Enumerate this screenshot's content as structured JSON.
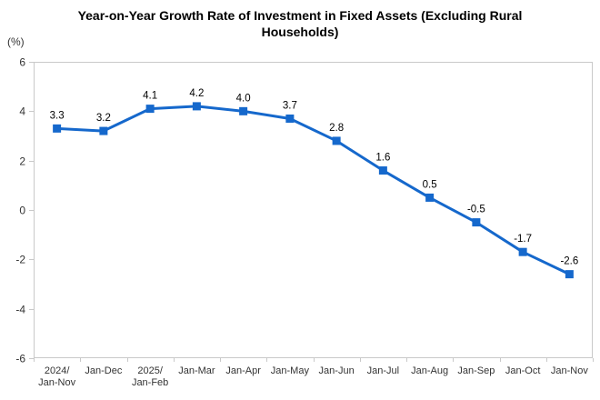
{
  "title": "Year-on-Year Growth Rate of Investment in Fixed Assets (Excluding Rural Households)",
  "y_axis_unit": "(%)",
  "colors": {
    "line": "#1568CC",
    "marker": "#1568CC",
    "axis": "#C9C9C9",
    "axis_text": "#333333",
    "data_label_text": "#000000",
    "title_text": "#000000",
    "background": "#FFFFFF"
  },
  "chart_data": {
    "type": "line",
    "title": "Year-on-Year Growth Rate of Investment in Fixed Assets (Excluding Rural Households)",
    "xlabel": "",
    "ylabel": "(%)",
    "categories": [
      [
        "2024/",
        "Jan-Nov"
      ],
      "Jan-Dec",
      [
        "2025/",
        "Jan-Feb"
      ],
      "Jan-Mar",
      "Jan-Apr",
      "Jan-May",
      "Jan-Jun",
      "Jan-Jul",
      "Jan-Aug",
      "Jan-Sep",
      "Jan-Oct",
      "Jan-Nov"
    ],
    "values": [
      3.3,
      3.2,
      4.1,
      4.2,
      4.0,
      3.7,
      2.8,
      1.6,
      0.5,
      -0.5,
      -1.7,
      -2.6
    ],
    "data_labels": [
      "3.3",
      "3.2",
      "4.1",
      "4.2",
      "4.0",
      "3.7",
      "2.8",
      "1.6",
      "0.5",
      "-0.5",
      "-1.7",
      "-2.6"
    ],
    "ylim": [
      -6,
      6
    ],
    "yticks": [
      6,
      4,
      2,
      0,
      -2,
      -4,
      -6
    ],
    "grid": false,
    "legend": "none",
    "marker_shape": "square"
  }
}
